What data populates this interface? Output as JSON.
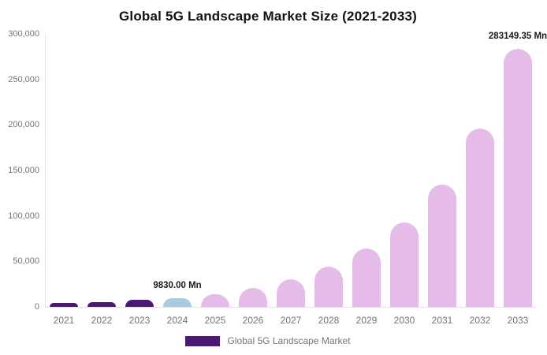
{
  "chart_data": {
    "type": "bar",
    "title": "Global 5G Landscape Market Size (2021-2033)",
    "categories": [
      "2021",
      "2022",
      "2023",
      "2024",
      "2025",
      "2026",
      "2027",
      "2028",
      "2029",
      "2030",
      "2031",
      "2032",
      "2033"
    ],
    "values": [
      4300,
      5600,
      7500,
      9830,
      14290,
      20770,
      30190,
      43880,
      63780,
      92710,
      134760,
      195880,
      283149.35
    ],
    "unit": "Mn",
    "bar_colors": [
      "#4a1a73",
      "#4a1a73",
      "#4a1a73",
      "#a9cbde",
      "#e5bce8",
      "#e5bce8",
      "#e5bce8",
      "#e5bce8",
      "#e5bce8",
      "#e5bce8",
      "#e5bce8",
      "#e5bce8",
      "#e5bce8"
    ],
    "point_labels": {
      "2024": "9830.00 Mn",
      "2033": "283149.35 Mn"
    },
    "xlabel": "",
    "ylabel": "",
    "ylim": [
      0,
      300000
    ],
    "yticks": [
      "0",
      "50,000",
      "100,000",
      "150,000",
      "200,000",
      "250,000",
      "300,000"
    ],
    "grid": false,
    "legend": {
      "position": "bottom",
      "entries": [
        {
          "label": "Global 5G Landscape Market",
          "color": "#4a1a73"
        }
      ]
    },
    "palette": {
      "historical_purple": "#4a1a73",
      "base_year_blue": "#a9cbde",
      "forecast_pink": "#e5bce8",
      "axis_line": "#e3e3e3",
      "tick_text": "#757575",
      "annotation_text": "#1a1a1a"
    }
  }
}
